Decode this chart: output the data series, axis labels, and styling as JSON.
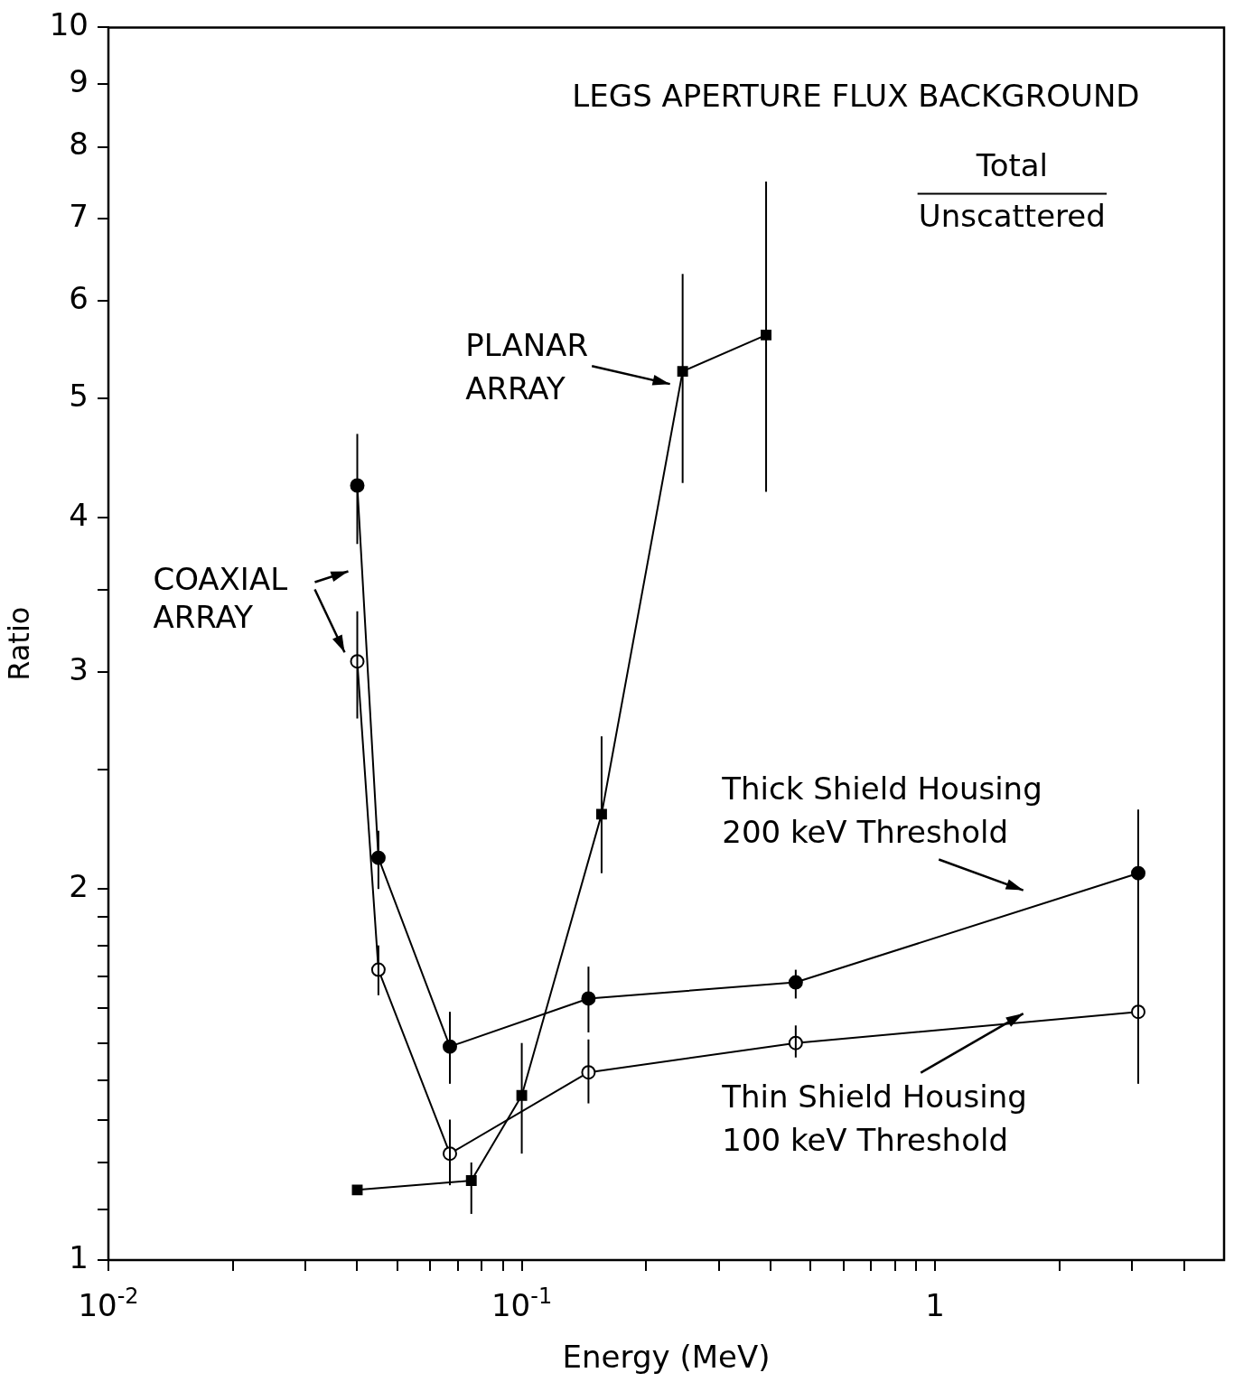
{
  "chart_data": {
    "type": "line",
    "xlabel": "Energy (MeV)",
    "ylabel": "Ratio",
    "log": "xy",
    "grid": false,
    "marker": "circle",
    "line_style": "solid",
    "xlim": [
      0.01,
      5
    ],
    "ylim": [
      1,
      10
    ],
    "xticks": [
      {
        "value": 0.01,
        "label": "10$^{-2}$"
      },
      {
        "value": 0.02,
        "label": null
      },
      {
        "value": 0.03,
        "label": null
      },
      {
        "value": 0.04,
        "label": null
      },
      {
        "value": 0.05,
        "label": null
      },
      {
        "value": 0.06,
        "label": null
      },
      {
        "value": 0.07,
        "label": null
      },
      {
        "value": 0.08,
        "label": null
      },
      {
        "value": 0.09,
        "label": null
      },
      {
        "value": 0.1,
        "label": "10$^{-1}$"
      },
      {
        "value": 0.2,
        "label": null
      },
      {
        "value": 0.3,
        "label": null
      },
      {
        "value": 0.4,
        "label": null
      },
      {
        "value": 0.5,
        "label": null
      },
      {
        "value": 0.6,
        "label": null
      },
      {
        "value": 0.7,
        "label": null
      },
      {
        "value": 0.8,
        "label": null
      },
      {
        "value": 0.9,
        "label": null
      },
      1,
      {
        "value": 2,
        "label": null
      },
      {
        "value": 3,
        "label": null
      },
      {
        "value": 4,
        "label": null
      }
    ],
    "yticks": [
      1,
      {
        "value": 1.1,
        "label": null
      },
      {
        "value": 1.2,
        "label": null
      },
      {
        "value": 1.3,
        "label": null
      },
      {
        "value": 1.4,
        "label": null
      },
      {
        "value": 1.5,
        "label": null
      },
      {
        "value": 1.6,
        "label": null
      },
      {
        "value": 1.7,
        "label": null
      },
      {
        "value": 1.8,
        "label": null
      },
      {
        "value": 1.9,
        "label": null
      },
      2,
      {
        "value": 2.5,
        "label": null
      },
      3,
      {
        "value": 3.5,
        "label": null
      },
      4,
      5,
      6,
      7,
      8,
      9,
      10
    ],
    "series": [
      {
        "color": "#000000",
        "x": [
          0.04,
          0.045,
          0.067,
          0.145,
          0.46,
          3.1
        ],
        "values": [
          4.25,
          2.12,
          1.49,
          1.63,
          1.68,
          2.06
        ],
        "errors": [
          [
            3.81,
            4.68
          ],
          [
            2.0,
            2.23
          ],
          [
            1.39,
            1.59
          ],
          [
            1.53,
            1.73
          ],
          [
            1.63,
            1.72
          ],
          [
            1.79,
            2.32
          ]
        ]
      },
      {
        "color": "#000000",
        "x": [
          0.04,
          0.045,
          0.067,
          0.145,
          0.46,
          3.1
        ],
        "values": [
          3.06,
          1.72,
          1.22,
          1.42,
          1.5,
          1.59
        ],
        "errors": [
          [
            2.75,
            3.36
          ],
          [
            1.64,
            1.8
          ],
          [
            1.15,
            1.3
          ],
          [
            1.34,
            1.51
          ],
          [
            1.46,
            1.55
          ],
          [
            1.39,
            1.81
          ]
        ]
      },
      {
        "color": "#000000",
        "marker": "square",
        "x": [
          0.04,
          0.0755,
          0.1,
          0.156,
          0.245,
          0.39
        ],
        "values": [
          1.14,
          1.16,
          1.36,
          2.3,
          5.26,
          5.63
        ],
        "errors": [
          null,
          [
            1.09,
            1.2
          ],
          [
            1.22,
            1.5
          ],
          [
            2.06,
            2.66
          ],
          [
            4.27,
            6.31
          ],
          [
            4.2,
            7.5
          ]
        ]
      }
    ],
    "annotations": [
      "LEGS APERTURE FLUX BACKGROUND",
      "Total",
      "Unscattered",
      "COAXIAL ARRAY",
      "Thick Shield Housing 200 keV Threshold",
      "Thin Shield Housing 100 keV Threshold",
      "PLANAR ARRAY"
    ]
  }
}
